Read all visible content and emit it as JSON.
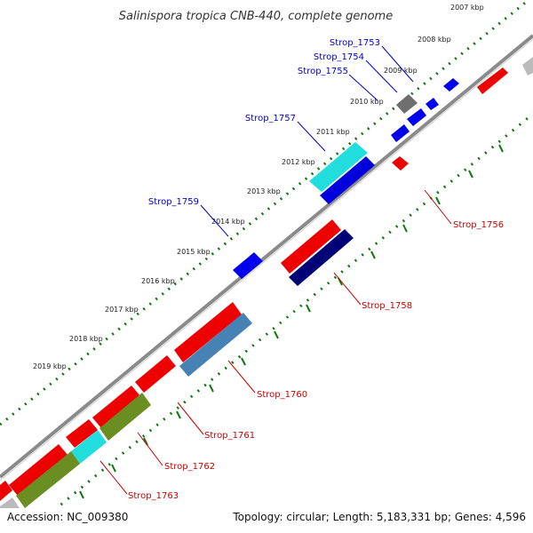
{
  "title": "Salinispora tropica CNB-440, complete genome",
  "footer": {
    "accession": "Accession: NC_009380",
    "summary": "Topology: circular; Length: 5,183,331 bp; Genes: 4,596"
  },
  "kbp_labels": [
    "2007 kbp",
    "2008 kbp",
    "2009 kbp",
    "2010 kbp",
    "2011 kbp",
    "2012 kbp",
    "2013 kbp",
    "2014 kbp",
    "2015 kbp",
    "2016 kbp",
    "2017 kbp",
    "2018 kbp",
    "2019 kbp"
  ],
  "gene_labels_forward": [
    "Strop_1753",
    "Strop_1754",
    "Strop_1755",
    "Strop_1757",
    "Strop_1759"
  ],
  "gene_labels_reverse": [
    "Strop_1756",
    "Strop_1758",
    "Strop_1760",
    "Strop_1761",
    "Strop_1762",
    "Strop_1763"
  ],
  "colors": {
    "backbone": "#888888",
    "forward_cds": "#0000ee",
    "reverse_cds": "#ee0000",
    "cyan_feature": "#22dddd",
    "navy_feature": "#000077",
    "steelblue_feature": "#4682b4",
    "olive_feature": "#6b8e23",
    "grey_feature": "#707070",
    "tick_green": "#117711",
    "label_blue": "#0000cc",
    "label_red": "#cc0000"
  }
}
